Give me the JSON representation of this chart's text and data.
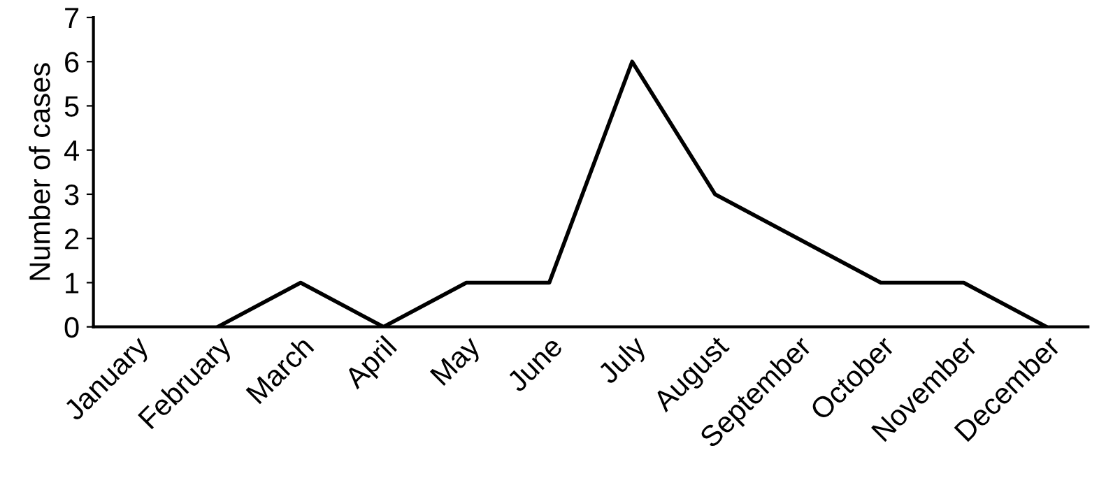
{
  "chart_data": {
    "type": "line",
    "ylabel": "Number of cases",
    "categories": [
      "January",
      "February",
      "March",
      "April",
      "May",
      "June",
      "July",
      "August",
      "September",
      "October",
      "November",
      "December"
    ],
    "values": [
      null,
      0,
      1,
      0,
      1,
      1,
      6,
      3,
      2,
      1,
      1,
      0
    ],
    "color": "#000000",
    "ylim": [
      0,
      7
    ],
    "yticks": [
      0,
      1,
      2,
      3,
      4,
      5,
      6,
      7
    ],
    "grid": false,
    "marker": "none",
    "line_style": "solid"
  }
}
